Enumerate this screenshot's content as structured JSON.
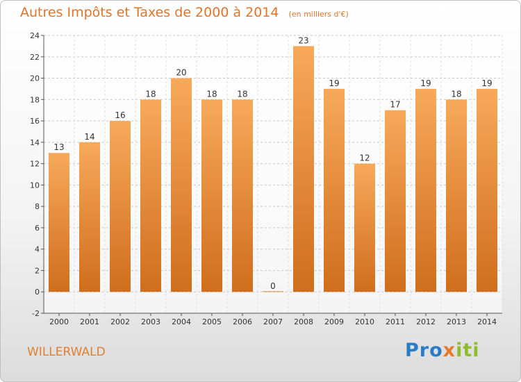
{
  "header": {
    "title": "Autres Impôts et Taxes de 2000 à 2014",
    "subtitle": "(en milliers d'€)"
  },
  "footer": {
    "commune": "WILLERWALD",
    "logo": [
      "Pro",
      "x",
      "iti"
    ]
  },
  "colors": {
    "bar_top": "#f7a95a",
    "bar_bottom": "#cf6e1d",
    "title": "#e0742a",
    "logo_blue": "#2a7cc7",
    "logo_orange": "#e8792b",
    "logo_green": "#8cbd2c"
  },
  "chart_data": {
    "type": "bar",
    "title": "Autres Impôts et Taxes de 2000 à 2014",
    "subtitle": "(en milliers d'€)",
    "xlabel": "",
    "ylabel": "",
    "categories": [
      "2000",
      "2001",
      "2002",
      "2003",
      "2004",
      "2005",
      "2006",
      "2007",
      "2008",
      "2009",
      "2010",
      "2011",
      "2012",
      "2013",
      "2014"
    ],
    "values": [
      13,
      14,
      16,
      18,
      20,
      18,
      18,
      0,
      23,
      19,
      12,
      17,
      19,
      18,
      19
    ],
    "ylim": [
      -2,
      24
    ],
    "yticks": [
      -2,
      0,
      2,
      4,
      6,
      8,
      10,
      12,
      14,
      16,
      18,
      20,
      22,
      24
    ],
    "grid": "horizontal dashed",
    "legend": "none"
  }
}
